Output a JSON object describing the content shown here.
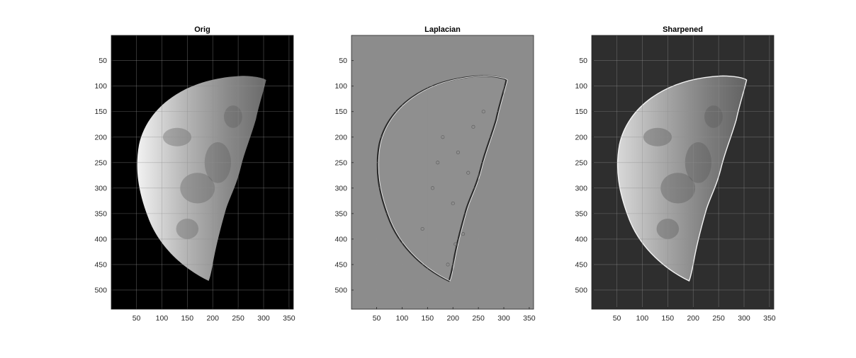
{
  "figure": {
    "background": "#ffffff",
    "axes_color": "#262626",
    "grid_color": "#8f8f8f",
    "panels": [
      {
        "title": "Orig",
        "kind": "original",
        "background_color": "#000000",
        "grid": true
      },
      {
        "title": "Laplacian",
        "kind": "laplacian",
        "background_color": "#8c8c8c",
        "grid": true
      },
      {
        "title": "Sharpened",
        "kind": "sharpened",
        "background_color": "#2e2e2e",
        "grid": true
      }
    ],
    "x_ticks": [
      50,
      100,
      150,
      200,
      250,
      300,
      350
    ],
    "y_ticks": [
      50,
      100,
      150,
      200,
      250,
      300,
      350,
      400,
      450,
      500
    ],
    "xlim": [
      0.5,
      358.5
    ],
    "ylim": [
      0.5,
      537.5
    ],
    "y_axis_reversed": true
  }
}
